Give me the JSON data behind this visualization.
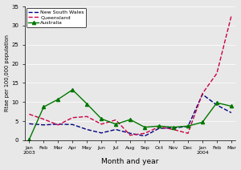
{
  "months": [
    "Jan\n2003",
    "Feb",
    "Mar",
    "Apr",
    "May",
    "Jun",
    "Jul",
    "Aug",
    "Sep",
    "Oct",
    "Nov",
    "Dec",
    "Jan\n2004",
    "Feb",
    "Mar"
  ],
  "nsw": [
    4.3,
    4.0,
    4.2,
    4.1,
    2.8,
    1.9,
    2.8,
    1.8,
    1.1,
    3.1,
    3.2,
    3.6,
    12.0,
    9.2,
    7.2
  ],
  "queensland": [
    6.8,
    5.5,
    4.0,
    5.9,
    6.2,
    4.2,
    5.3,
    1.3,
    1.8,
    3.5,
    2.8,
    1.8,
    12.2,
    17.5,
    32.5
  ],
  "australia": [
    0.2,
    8.7,
    10.7,
    13.2,
    9.5,
    5.6,
    4.2,
    5.4,
    3.4,
    3.7,
    3.4,
    3.7,
    4.7,
    9.8,
    8.9
  ],
  "nsw_color": "#000080",
  "qld_color": "#cc0044",
  "aus_color": "#007700",
  "ylim": [
    0,
    35
  ],
  "yticks": [
    0,
    5,
    10,
    15,
    20,
    25,
    30,
    35
  ],
  "ylabel": "Rtae per 100,000 population",
  "xlabel": "Month and year",
  "legend_labels": [
    "New South Wales",
    "Queensland",
    "Australia"
  ],
  "bg_color": "#e8e8e8",
  "fig_bg": "#e8e8e8"
}
